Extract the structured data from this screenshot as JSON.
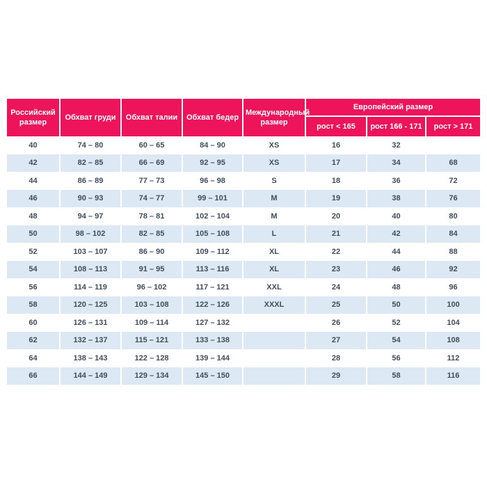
{
  "chart_data": {
    "type": "table",
    "headers": {
      "russian_size": "Российский размер",
      "chest": "Обхват груди",
      "waist": "Обхват талии",
      "hips": "Обхват бедер",
      "international_size": "Международный размер",
      "european_size": "Европейский размер",
      "height_lt_165": "рост < 165",
      "height_166_171": "рост 166 - 171",
      "height_gt_171": "рост > 171"
    },
    "rows": [
      [
        "40",
        "74 – 80",
        "60 – 65",
        "84 – 90",
        "XS",
        "16",
        "32",
        ""
      ],
      [
        "42",
        "82 – 85",
        "66 – 69",
        "92 – 95",
        "XS",
        "17",
        "34",
        "68"
      ],
      [
        "44",
        "86 – 89",
        "77 – 73",
        "96 – 98",
        "S",
        "18",
        "36",
        "72"
      ],
      [
        "46",
        "90 – 93",
        "74 – 77",
        "99 – 101",
        "M",
        "19",
        "38",
        "76"
      ],
      [
        "48",
        "94 – 97",
        "78 – 81",
        "102 – 104",
        "M",
        "20",
        "40",
        "80"
      ],
      [
        "50",
        "98 – 102",
        "82 – 85",
        "105 – 108",
        "L",
        "21",
        "42",
        "84"
      ],
      [
        "52",
        "103 – 107",
        "86 – 90",
        "109 – 112",
        "XL",
        "22",
        "44",
        "88"
      ],
      [
        "54",
        "108 – 113",
        "91 – 95",
        "113 – 116",
        "XL",
        "23",
        "46",
        "92"
      ],
      [
        "56",
        "114 – 119",
        "96 – 102",
        "117 – 121",
        "XXL",
        "24",
        "48",
        "96"
      ],
      [
        "58",
        "120 – 125",
        "103 – 108",
        "122 – 126",
        "XXXL",
        "25",
        "50",
        "100"
      ],
      [
        "60",
        "126 – 131",
        "109 – 114",
        "127 – 132",
        "",
        "26",
        "52",
        "104"
      ],
      [
        "62",
        "132 – 137",
        "115 – 121",
        "133 – 138",
        "",
        "27",
        "54",
        "108"
      ],
      [
        "64",
        "138 – 143",
        "122 – 128",
        "139 – 144",
        "",
        "28",
        "56",
        "112"
      ],
      [
        "66",
        "144 – 149",
        "129 – 134",
        "145 – 150",
        "",
        "29",
        "58",
        "116"
      ]
    ],
    "layout": {
      "grid": "off",
      "striped": true
    }
  },
  "colors": {
    "header_bg": "#ed145b",
    "header_text": "#ffffff",
    "stripe_bg": "#dce8f4",
    "text_dark": "#3f4e5b",
    "row_bg": "#ffffff"
  }
}
